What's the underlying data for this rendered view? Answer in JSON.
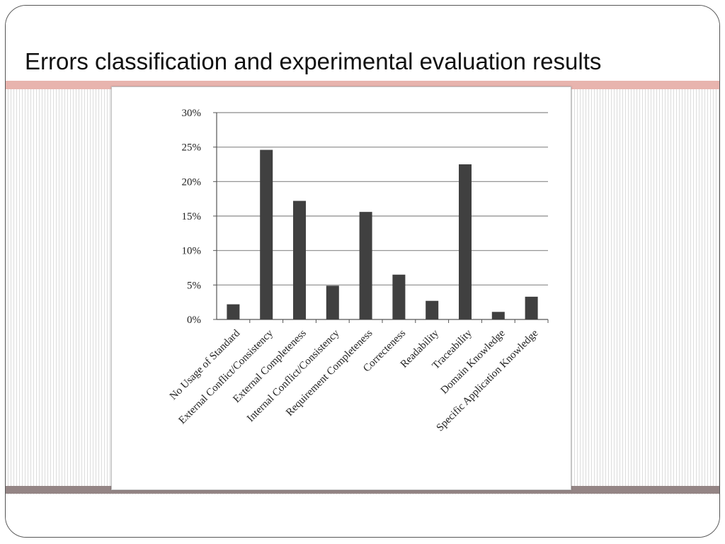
{
  "slide": {
    "title": "Errors classification and experimental evaluation results",
    "accent_color": "#e8b4ae",
    "footer_color": "#948585"
  },
  "chart_data": {
    "type": "bar",
    "title": "",
    "xlabel": "",
    "ylabel": "",
    "categories": [
      "No Usage of Standard",
      "External Conflict/Consistency",
      "External Completeness",
      "Internal Conflict/Consistency",
      "Requirement Completeness",
      "Correcteness",
      "Readability",
      "Traceability",
      "Domain Knowledge",
      "Specific Application Knowledge"
    ],
    "values": [
      2.2,
      24.6,
      17.2,
      4.9,
      15.6,
      6.5,
      2.7,
      22.5,
      1.1,
      3.3
    ],
    "ylim": [
      0,
      30
    ],
    "y_ticks": [
      0,
      5,
      10,
      15,
      20,
      25,
      30
    ],
    "y_tick_labels": [
      "0%",
      "5%",
      "10%",
      "15%",
      "20%",
      "25%",
      "30%"
    ],
    "grid": true,
    "bar_color": "#404040",
    "legend": "none"
  }
}
